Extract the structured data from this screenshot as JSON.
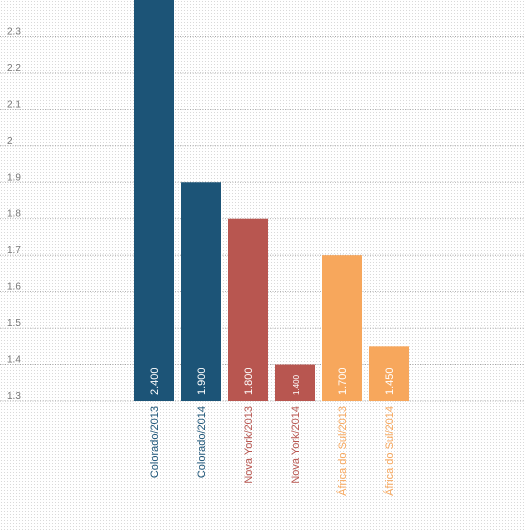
{
  "chart_data": {
    "type": "bar",
    "categories": [
      "Colorado/2013",
      "Colorado/2014",
      "Nova York/2013",
      "Nova York/2014",
      "África do Sul/2013",
      "África do Sul/2014"
    ],
    "values": [
      2.4,
      1.9,
      1.8,
      1.4,
      1.7,
      1.45
    ],
    "value_labels": [
      "2.400",
      "1.900",
      "1.800",
      "1.400",
      "1.700",
      "1.450"
    ],
    "colors": [
      "#1c5477",
      "#1c5477",
      "#b85650",
      "#b85650",
      "#f7a75c",
      "#f7a75c"
    ],
    "yticks": [
      "1.3",
      "1.4",
      "1.5",
      "1.6",
      "1.7",
      "1.8",
      "1.9",
      "2",
      "2.1",
      "2.2",
      "2.3"
    ],
    "ylim": [
      1.3,
      2.4
    ],
    "grid": true,
    "title": "",
    "xlabel": "",
    "ylabel": ""
  }
}
